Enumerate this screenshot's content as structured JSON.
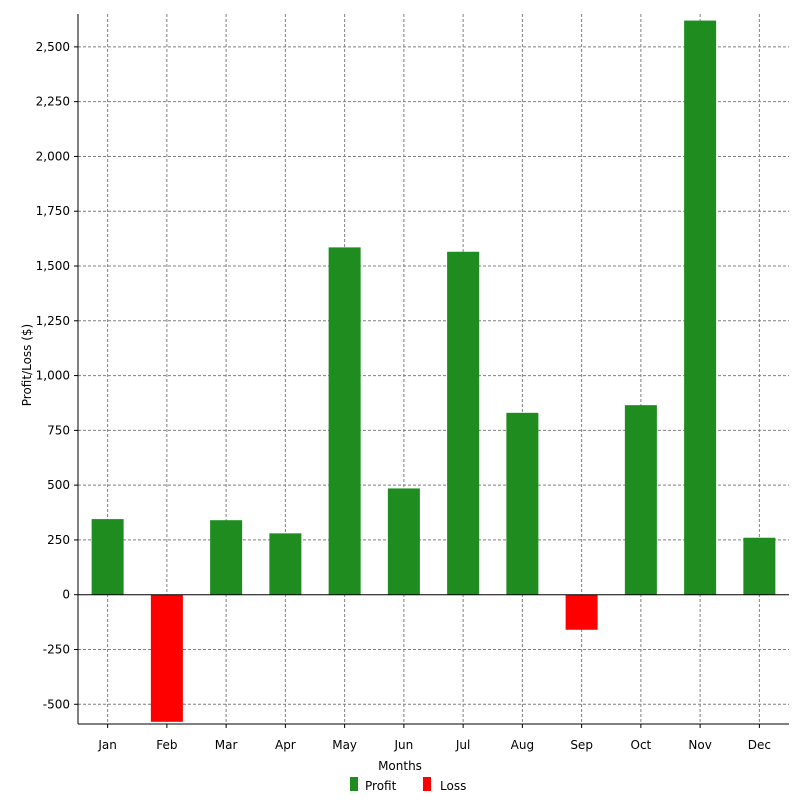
{
  "chart_data": {
    "type": "bar",
    "categories": [
      "Jan",
      "Feb",
      "Mar",
      "Apr",
      "May",
      "Jun",
      "Jul",
      "Aug",
      "Sep",
      "Oct",
      "Nov",
      "Dec"
    ],
    "values": [
      345,
      -580,
      340,
      280,
      1585,
      485,
      1565,
      830,
      -160,
      865,
      2620,
      260
    ],
    "series": [
      {
        "name": "Profit",
        "color": "#1e8c1e"
      },
      {
        "name": "Loss",
        "color": "#ff0000"
      }
    ],
    "title": "",
    "xlabel": "Months",
    "ylabel": "Profit/Loss ($)",
    "ylim": [
      -590,
      2650
    ],
    "yticks": [
      -500,
      -250,
      0,
      250,
      500,
      750,
      1000,
      1250,
      1500,
      1750,
      2000,
      2250,
      2500
    ],
    "ytick_labels": [
      "-500",
      "-250",
      "0",
      "250",
      "500",
      "750",
      "1,000",
      "1,250",
      "1,500",
      "1,750",
      "2,000",
      "2,250",
      "2,500"
    ],
    "grid": true,
    "legend": "bottom-center"
  }
}
